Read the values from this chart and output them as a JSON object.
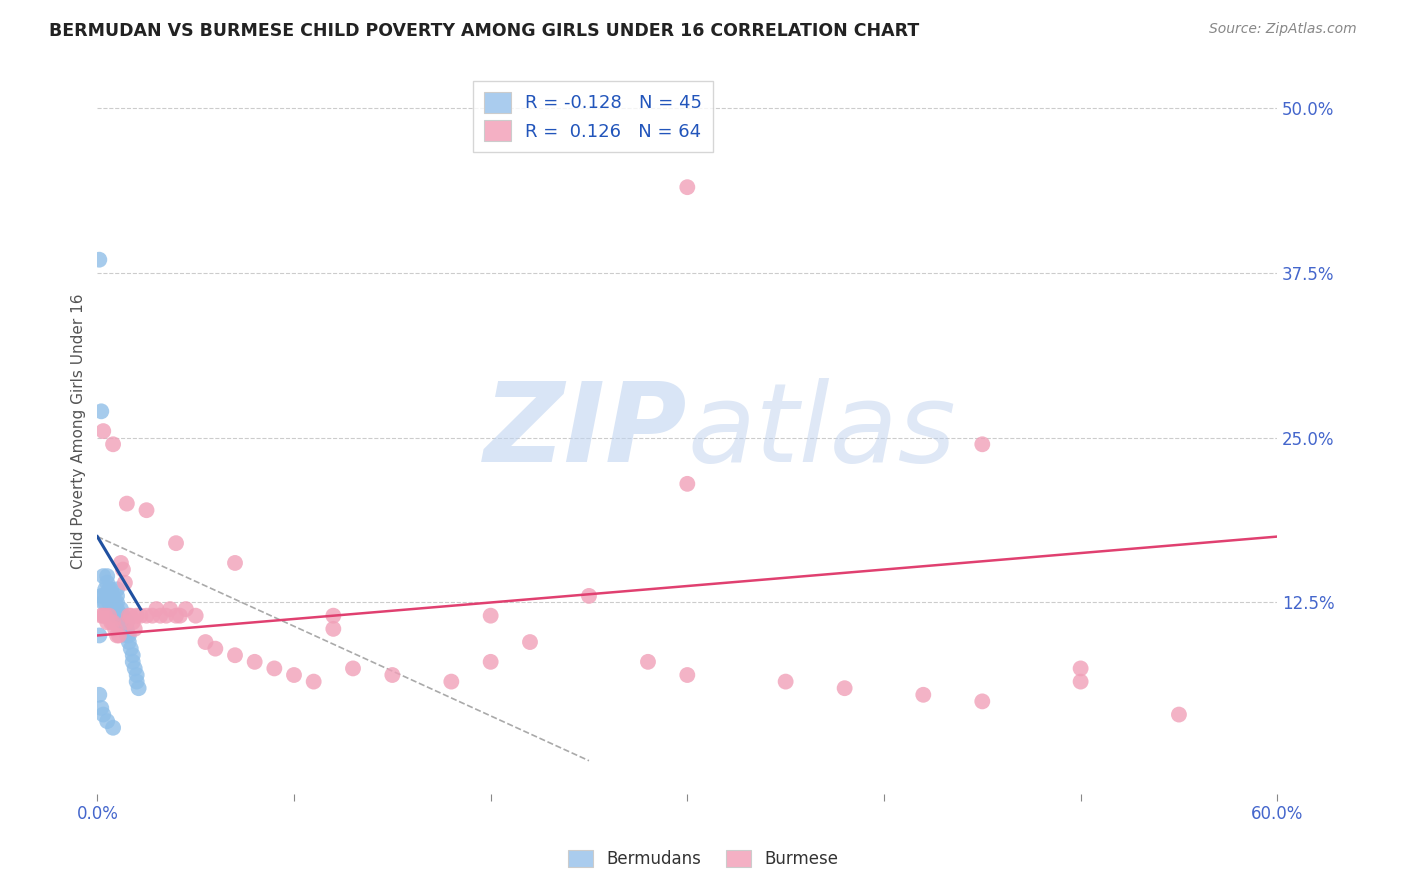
{
  "title": "BERMUDAN VS BURMESE CHILD POVERTY AMONG GIRLS UNDER 16 CORRELATION CHART",
  "source": "Source: ZipAtlas.com",
  "ylabel": "Child Poverty Among Girls Under 16",
  "xlim": [
    0.0,
    0.6
  ],
  "ylim": [
    -0.02,
    0.53
  ],
  "ytick_positions": [
    0.125,
    0.25,
    0.375,
    0.5
  ],
  "ytick_labels": [
    "12.5%",
    "25.0%",
    "37.5%",
    "50.0%"
  ],
  "bermudans_color": "#90bfe8",
  "burmese_color": "#f0a0b8",
  "bermudans_line_color": "#2050a0",
  "burmese_line_color": "#e04070",
  "dashed_line_color": "#aaaaaa",
  "watermark_ZIP_color": "#c8d8f0",
  "watermark_atlas_color": "#b0c8e8",
  "background_color": "#ffffff",
  "grid_color": "#cccccc",
  "legend_label1": "R = -0.128   N = 45",
  "legend_label2": "R =  0.126   N = 64",
  "legend_color1": "#aaccee",
  "legend_color2": "#f4b0c4",
  "bottom_legend_label1": "Bermudans",
  "bottom_legend_label2": "Burmese",
  "bermudans_x": [
    0.001,
    0.001,
    0.002,
    0.002,
    0.003,
    0.003,
    0.003,
    0.004,
    0.004,
    0.005,
    0.005,
    0.005,
    0.006,
    0.006,
    0.007,
    0.007,
    0.008,
    0.008,
    0.009,
    0.01,
    0.01,
    0.01,
    0.01,
    0.01,
    0.012,
    0.012,
    0.013,
    0.013,
    0.015,
    0.015,
    0.015,
    0.016,
    0.016,
    0.017,
    0.018,
    0.018,
    0.019,
    0.02,
    0.02,
    0.021,
    0.001,
    0.002,
    0.003,
    0.005,
    0.008
  ],
  "bermudans_y": [
    0.385,
    0.1,
    0.27,
    0.13,
    0.145,
    0.13,
    0.125,
    0.135,
    0.125,
    0.145,
    0.14,
    0.13,
    0.135,
    0.125,
    0.135,
    0.13,
    0.13,
    0.125,
    0.125,
    0.135,
    0.13,
    0.125,
    0.12,
    0.115,
    0.12,
    0.115,
    0.115,
    0.11,
    0.11,
    0.105,
    0.1,
    0.1,
    0.095,
    0.09,
    0.085,
    0.08,
    0.075,
    0.07,
    0.065,
    0.06,
    0.055,
    0.045,
    0.04,
    0.035,
    0.03
  ],
  "burmese_x": [
    0.002,
    0.003,
    0.004,
    0.005,
    0.006,
    0.007,
    0.008,
    0.009,
    0.01,
    0.011,
    0.012,
    0.013,
    0.014,
    0.015,
    0.016,
    0.017,
    0.018,
    0.019,
    0.02,
    0.022,
    0.025,
    0.028,
    0.03,
    0.032,
    0.035,
    0.037,
    0.04,
    0.042,
    0.045,
    0.05,
    0.055,
    0.06,
    0.07,
    0.08,
    0.09,
    0.1,
    0.11,
    0.12,
    0.13,
    0.15,
    0.18,
    0.2,
    0.22,
    0.25,
    0.28,
    0.3,
    0.35,
    0.38,
    0.42,
    0.45,
    0.5,
    0.55,
    0.003,
    0.008,
    0.015,
    0.025,
    0.04,
    0.07,
    0.12,
    0.2,
    0.3,
    0.45,
    0.3,
    0.5
  ],
  "burmese_y": [
    0.115,
    0.115,
    0.115,
    0.11,
    0.115,
    0.11,
    0.11,
    0.105,
    0.1,
    0.1,
    0.155,
    0.15,
    0.14,
    0.11,
    0.115,
    0.115,
    0.11,
    0.105,
    0.115,
    0.115,
    0.115,
    0.115,
    0.12,
    0.115,
    0.115,
    0.12,
    0.115,
    0.115,
    0.12,
    0.115,
    0.095,
    0.09,
    0.085,
    0.08,
    0.075,
    0.07,
    0.065,
    0.105,
    0.075,
    0.07,
    0.065,
    0.115,
    0.095,
    0.13,
    0.08,
    0.07,
    0.065,
    0.06,
    0.055,
    0.05,
    0.065,
    0.04,
    0.255,
    0.245,
    0.2,
    0.195,
    0.17,
    0.155,
    0.115,
    0.08,
    0.44,
    0.245,
    0.215,
    0.075
  ],
  "berm_trend_x0": 0.0,
  "berm_trend_y0": 0.175,
  "berm_trend_x1": 0.022,
  "berm_trend_y1": 0.12,
  "burm_trend_x0": 0.0,
  "burm_trend_y0": 0.1,
  "burm_trend_x1": 0.6,
  "burm_trend_y1": 0.175,
  "dash_trend_x0": 0.0,
  "dash_trend_y0": 0.175,
  "dash_trend_x1": 0.25,
  "dash_trend_y1": 0.005
}
